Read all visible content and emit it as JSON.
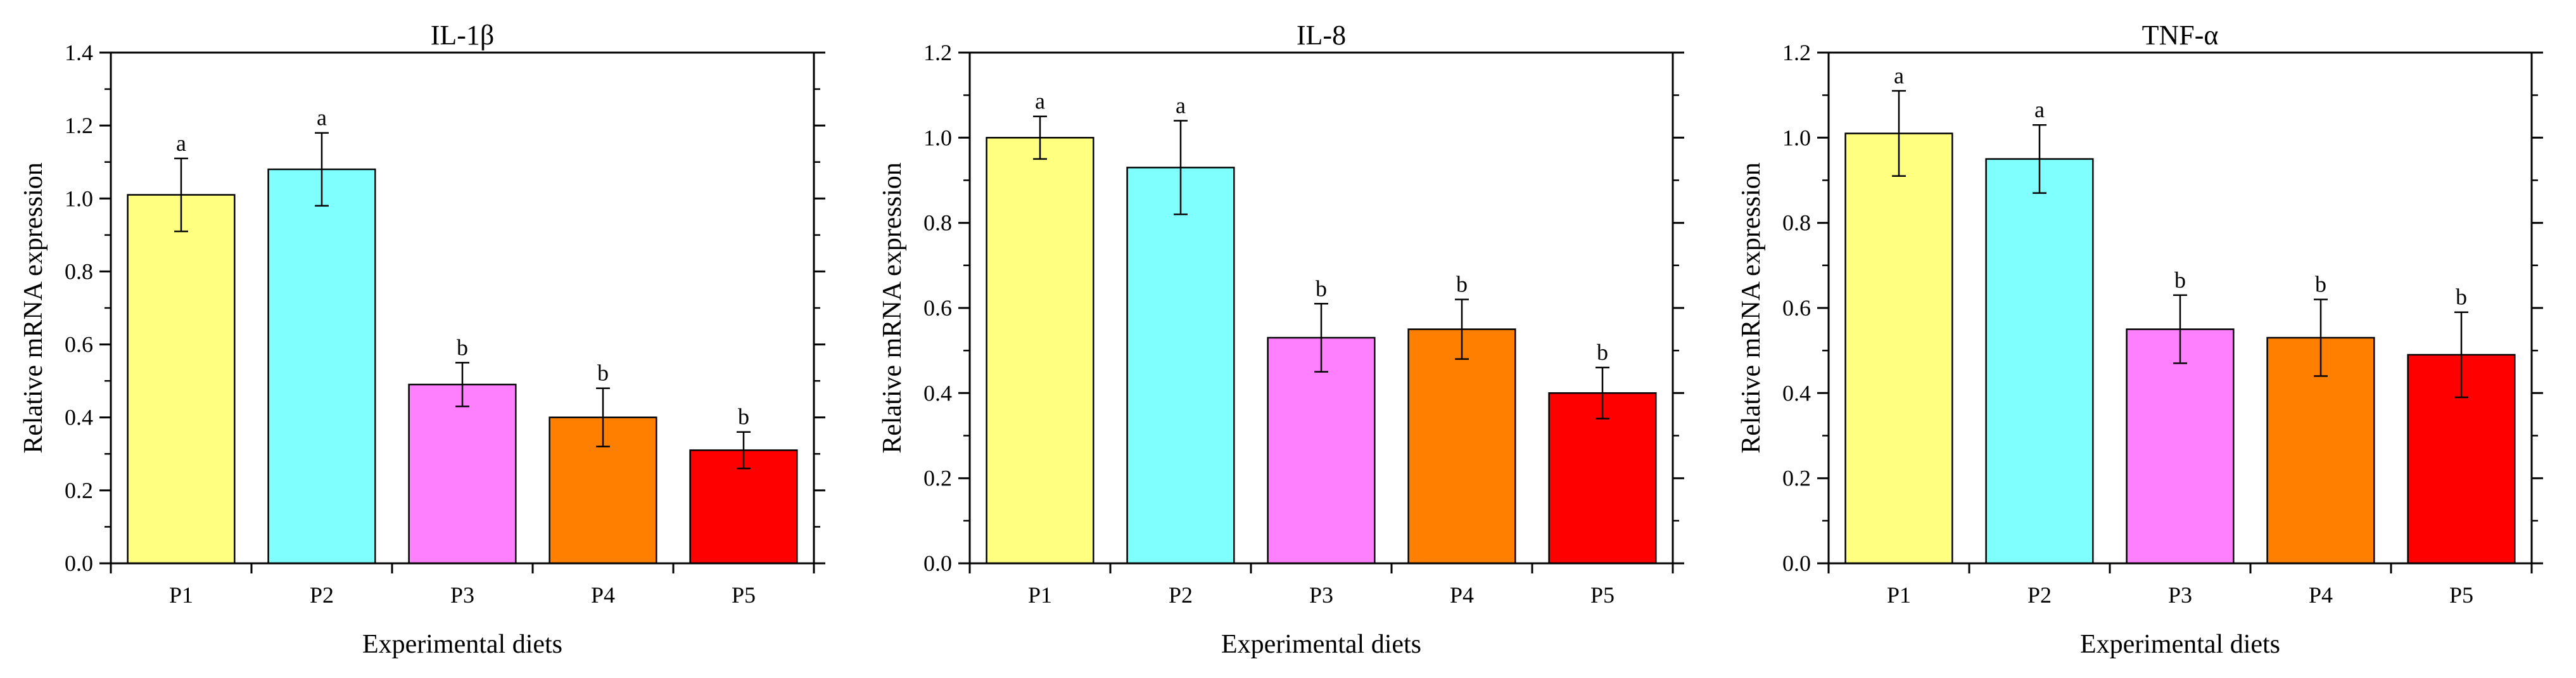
{
  "chart_data": [
    {
      "type": "bar",
      "title": "IL-1β",
      "xlabel": "Experimental diets",
      "ylabel": "Relative mRNA expression",
      "categories": [
        "P1",
        "P2",
        "P3",
        "P4",
        "P5"
      ],
      "values": [
        1.01,
        1.08,
        0.49,
        0.4,
        0.31
      ],
      "errors": [
        0.1,
        0.1,
        0.06,
        0.08,
        0.05
      ],
      "significance": [
        "a",
        "a",
        "b",
        "b",
        "b"
      ],
      "colors": [
        "#FFFF80",
        "#80FFFF",
        "#FF80FF",
        "#FF8000",
        "#FF0000"
      ],
      "ylim": [
        0,
        1.4
      ],
      "yticks": [
        "0.0",
        "0.2",
        "0.4",
        "0.6",
        "0.8",
        "1.0",
        "1.2",
        "1.4"
      ],
      "ytick_values": [
        0,
        0.2,
        0.4,
        0.6,
        0.8,
        1.0,
        1.2,
        1.4
      ],
      "grid": false,
      "legend": "none"
    },
    {
      "type": "bar",
      "title": "IL-8",
      "xlabel": "Experimental diets",
      "ylabel": "Relative mRNA expression",
      "categories": [
        "P1",
        "P2",
        "P3",
        "P4",
        "P5"
      ],
      "values": [
        1.0,
        0.93,
        0.53,
        0.55,
        0.4
      ],
      "errors": [
        0.05,
        0.11,
        0.08,
        0.07,
        0.06
      ],
      "significance": [
        "a",
        "a",
        "b",
        "b",
        "b"
      ],
      "colors": [
        "#FFFF80",
        "#80FFFF",
        "#FF80FF",
        "#FF8000",
        "#FF0000"
      ],
      "ylim": [
        0,
        1.2
      ],
      "yticks": [
        "0.0",
        "0.2",
        "0.4",
        "0.6",
        "0.8",
        "1.0",
        "1.2"
      ],
      "ytick_values": [
        0,
        0.2,
        0.4,
        0.6,
        0.8,
        1.0,
        1.2
      ],
      "grid": false,
      "legend": "none"
    },
    {
      "type": "bar",
      "title": "TNF-α",
      "xlabel": "Experimental diets",
      "ylabel": "Relative mRNA expression",
      "categories": [
        "P1",
        "P2",
        "P3",
        "P4",
        "P5"
      ],
      "values": [
        1.01,
        0.95,
        0.55,
        0.53,
        0.49
      ],
      "errors": [
        0.1,
        0.08,
        0.08,
        0.09,
        0.1
      ],
      "significance": [
        "a",
        "a",
        "b",
        "b",
        "b"
      ],
      "colors": [
        "#FFFF80",
        "#80FFFF",
        "#FF80FF",
        "#FF8000",
        "#FF0000"
      ],
      "ylim": [
        0,
        1.2
      ],
      "yticks": [
        "0.0",
        "0.2",
        "0.4",
        "0.6",
        "0.8",
        "1.0",
        "1.2"
      ],
      "ytick_values": [
        0,
        0.2,
        0.4,
        0.6,
        0.8,
        1.0,
        1.2
      ],
      "grid": false,
      "legend": "none"
    }
  ]
}
